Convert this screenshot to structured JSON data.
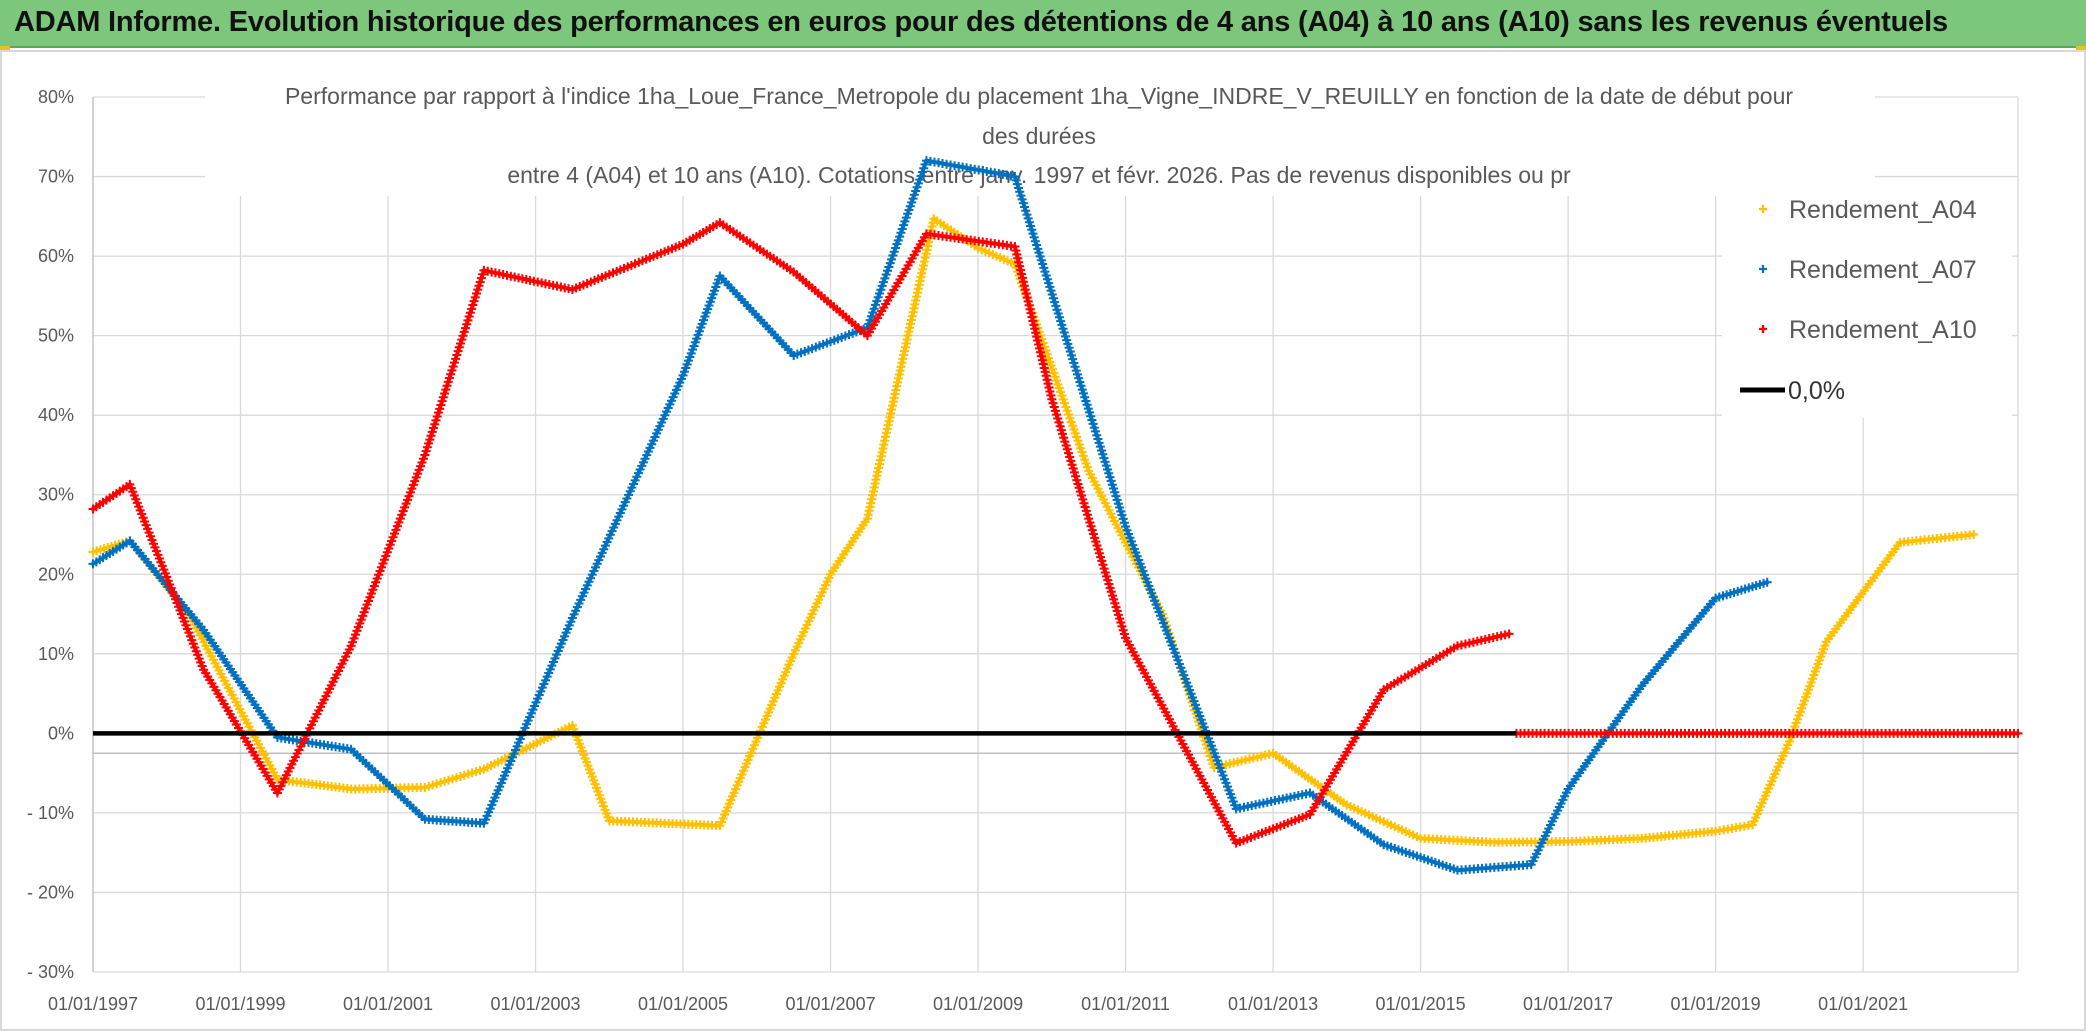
{
  "header": {
    "title": "ADAM Informe. Evolution historique des performances en euros pour des détentions de 4 ans (A04) à 10 ans (A10) sans les revenus éventuels"
  },
  "chart_data": {
    "type": "line",
    "title_lines": [
      "Performance par rapport à l'indice 1ha_Loue_France_Metropole  du placement 1ha_Vigne_INDRE_V_REUILLY en fonction de la date de début pour",
      "des durées",
      "entre 4 (A04) et 10 ans (A10). Cotations entre janv. 1997 et févr. 2026. Pas de revenus disponibles ou pr"
    ],
    "xlabel": "",
    "ylabel": "",
    "xlim": [
      1997.0,
      2023.1
    ],
    "ylim": [
      -30,
      80
    ],
    "x_tick_values": [
      1997,
      1999,
      2001,
      2003,
      2005,
      2007,
      2009,
      2011,
      2013,
      2015,
      2017,
      2019,
      2021
    ],
    "x_tick_labels": [
      "01/01/1997",
      "01/01/1999",
      "01/01/2001",
      "01/01/2003",
      "01/01/2005",
      "01/01/2007",
      "01/01/2009",
      "01/01/2011",
      "01/01/2013",
      "01/01/2015",
      "01/01/2017",
      "01/01/2019",
      "01/01/2021"
    ],
    "y_tick_values": [
      80,
      70,
      60,
      50,
      40,
      30,
      20,
      10,
      0,
      -10,
      -20,
      -30
    ],
    "y_tick_labels": [
      "80%",
      "70%",
      "60%",
      "50%",
      "40%",
      "30%",
      "20%",
      "10%",
      "0%",
      "- 10%",
      "- 20%",
      "- 30%"
    ],
    "grid": true,
    "legend_position": "top-right",
    "series": [
      {
        "name": "Rendement_A04",
        "color": "#ffc000",
        "marker": "plus",
        "x": [
          1997.0,
          1997.5,
          1998.3,
          1999.5,
          2000.5,
          2001.5,
          2002.3,
          2003.5,
          2004.0,
          2005.5,
          2006.5,
          2007.0,
          2007.5,
          2008.4,
          2009.0,
          2009.5,
          2010.5,
          2011.5,
          2012.2,
          2013.0,
          2014.0,
          2015.0,
          2016.0,
          2017.0,
          2018.0,
          2019.0,
          2019.5,
          2020.0,
          2020.5,
          2021.5,
          2022.0,
          2022.5
        ],
        "y": [
          22.8,
          24.2,
          15.0,
          -5.8,
          -7.0,
          -6.8,
          -4.5,
          1.0,
          -11.0,
          -11.6,
          10.0,
          20.0,
          27.0,
          64.7,
          61.0,
          59.0,
          33.0,
          15.0,
          -4.3,
          -2.5,
          -9.0,
          -13.2,
          -13.7,
          -13.6,
          -13.2,
          -12.3,
          -11.5,
          -1.0,
          11.5,
          24.0,
          24.5,
          25.0
        ]
      },
      {
        "name": "Rendement_A07",
        "color": "#0070c0",
        "marker": "plus",
        "x": [
          1997.0,
          1997.5,
          1998.5,
          1999.5,
          2000.5,
          2001.5,
          2002.3,
          2003.5,
          2005.0,
          2005.5,
          2006.5,
          2007.5,
          2008.3,
          2009.5,
          2011.0,
          2012.5,
          2013.5,
          2014.5,
          2015.5,
          2016.5,
          2017.0,
          2018.0,
          2019.0,
          2019.7
        ],
        "y": [
          21.3,
          24.2,
          13.0,
          -0.5,
          -2.0,
          -10.8,
          -11.3,
          14.5,
          45.0,
          57.5,
          47.5,
          51.0,
          72.0,
          70.0,
          26.0,
          -9.5,
          -7.5,
          -14.0,
          -17.2,
          -16.5,
          -7.0,
          6.0,
          17.0,
          19.0
        ]
      },
      {
        "name": "Rendement_A10",
        "color": "#ff0000",
        "marker": "plus",
        "x": [
          1997.0,
          1997.5,
          1998.5,
          1999.5,
          2000.5,
          2001.5,
          2002.3,
          2003.5,
          2005.0,
          2005.5,
          2006.5,
          2007.5,
          2008.3,
          2009.5,
          2010.0,
          2010.5,
          2011.0,
          2012.5,
          2013.5,
          2014.5,
          2015.5,
          2016.2
        ],
        "y": [
          28.2,
          31.3,
          8.0,
          -7.5,
          11.0,
          35.0,
          58.2,
          55.8,
          61.5,
          64.2,
          58.0,
          50.0,
          62.8,
          61.2,
          42.0,
          27.0,
          12.0,
          -13.8,
          -10.2,
          5.5,
          11.0,
          12.5
        ]
      },
      {
        "name": "Rendement_A10_tail",
        "color": "#ff0000",
        "marker": "plus",
        "x": [
          2016.3,
          2023.1
        ],
        "y": [
          0.0,
          0.0
        ]
      }
    ],
    "reference_line": {
      "name": "0,0%",
      "value": 0,
      "color": "#000000"
    },
    "legend": [
      {
        "label": "Rendement_A04",
        "color": "#ffc000",
        "kind": "marker"
      },
      {
        "label": "Rendement_A07",
        "color": "#0070c0",
        "kind": "marker"
      },
      {
        "label": "Rendement_A10",
        "color": "#ff0000",
        "kind": "marker"
      },
      {
        "label": "0,0%",
        "color": "#000000",
        "kind": "line"
      }
    ]
  }
}
